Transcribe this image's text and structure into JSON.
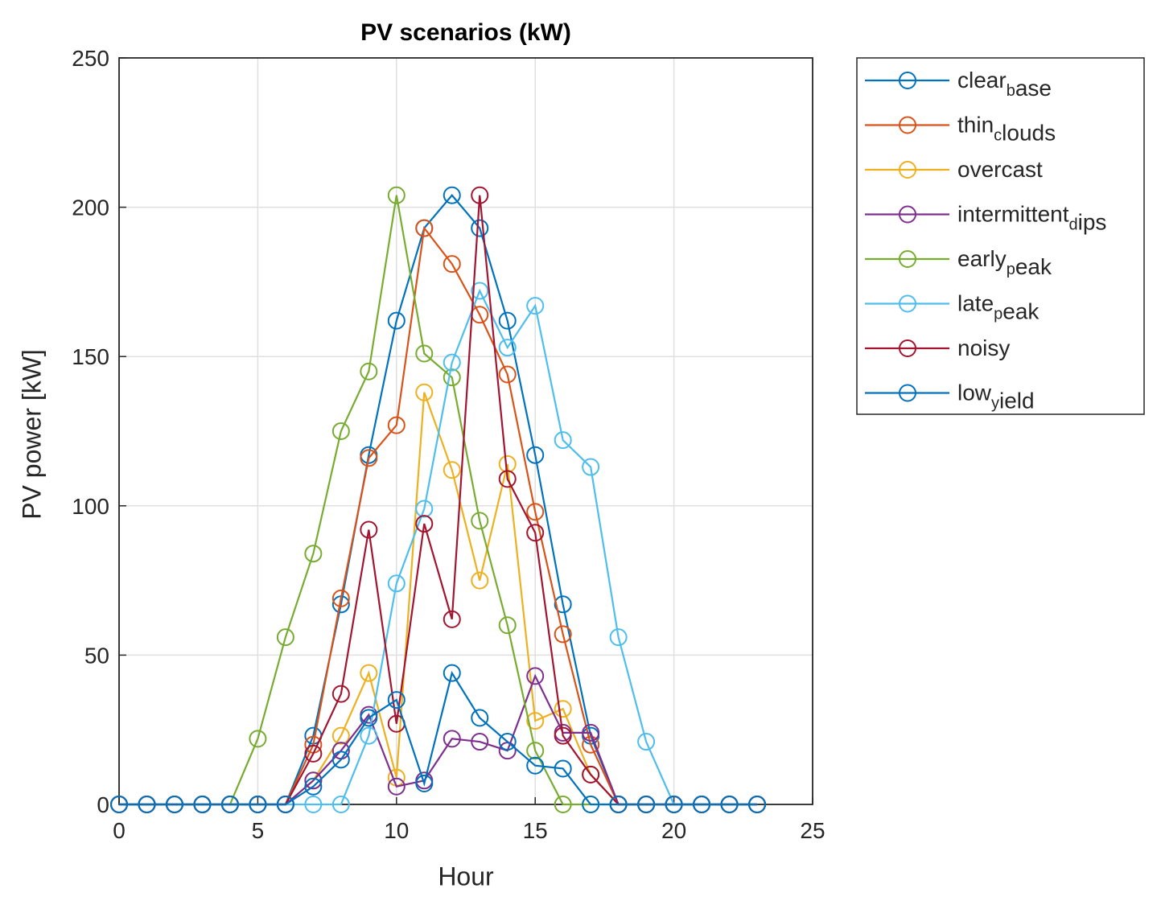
{
  "chart_data": {
    "type": "line",
    "title": "PV scenarios (kW)",
    "xlabel": "Hour",
    "ylabel": "PV power [kW]",
    "x": [
      0,
      1,
      2,
      3,
      4,
      5,
      6,
      7,
      8,
      9,
      10,
      11,
      12,
      13,
      14,
      15,
      16,
      17,
      18,
      19,
      20,
      21,
      22,
      23
    ],
    "xlim": [
      0,
      25
    ],
    "xticks": [
      0,
      5,
      10,
      15,
      20,
      25
    ],
    "ylim": [
      0,
      250
    ],
    "yticks": [
      0,
      50,
      100,
      150,
      200,
      250
    ],
    "grid": true,
    "legend_position": "outside-right",
    "marker": "circle",
    "series": [
      {
        "name": "clear_base",
        "color": "#0072BD",
        "values": [
          0,
          0,
          0,
          0,
          0,
          0,
          0,
          23,
          67,
          117,
          162,
          193,
          204,
          193,
          162,
          117,
          67,
          23,
          0,
          0,
          0,
          0,
          0,
          0
        ]
      },
      {
        "name": "thin_clouds",
        "color": "#D95319",
        "values": [
          0,
          0,
          0,
          0,
          0,
          0,
          0,
          20,
          69,
          116,
          127,
          193,
          181,
          164,
          144,
          98,
          57,
          20,
          0,
          0,
          0,
          0,
          0,
          0
        ]
      },
      {
        "name": "overcast",
        "color": "#EDB120",
        "values": [
          0,
          0,
          0,
          0,
          0,
          0,
          0,
          8,
          23,
          44,
          9,
          138,
          112,
          75,
          114,
          28,
          32,
          10,
          0,
          0,
          0,
          0,
          0,
          0
        ]
      },
      {
        "name": "intermittent_dips",
        "color": "#7E2F8E",
        "values": [
          0,
          0,
          0,
          0,
          0,
          0,
          0,
          8,
          18,
          30,
          6,
          8,
          22,
          21,
          18,
          43,
          24,
          24,
          0,
          0,
          0,
          0,
          0,
          0
        ]
      },
      {
        "name": "early_peak",
        "color": "#77AC30",
        "values": [
          0,
          0,
          0,
          0,
          0,
          22,
          56,
          84,
          125,
          145,
          204,
          151,
          143,
          95,
          60,
          18,
          0,
          0,
          0,
          0,
          0,
          0,
          0,
          0
        ]
      },
      {
        "name": "late_peak",
        "color": "#4DBEEE",
        "values": [
          0,
          0,
          0,
          0,
          0,
          0,
          0,
          0,
          0,
          23,
          74,
          99,
          148,
          172,
          153,
          167,
          122,
          113,
          56,
          21,
          0,
          0,
          0,
          0
        ]
      },
      {
        "name": "noisy",
        "color": "#A2142F",
        "values": [
          0,
          0,
          0,
          0,
          0,
          0,
          0,
          17,
          37,
          92,
          27,
          94,
          62,
          204,
          109,
          91,
          23,
          10,
          0,
          0,
          0,
          0,
          0,
          0
        ]
      },
      {
        "name": "low_yield",
        "color": "#0072BD",
        "values": [
          0,
          0,
          0,
          0,
          0,
          0,
          0,
          6,
          15,
          29,
          35,
          7,
          44,
          29,
          21,
          13,
          12,
          0,
          0,
          0,
          0,
          0,
          0,
          0
        ]
      }
    ]
  }
}
